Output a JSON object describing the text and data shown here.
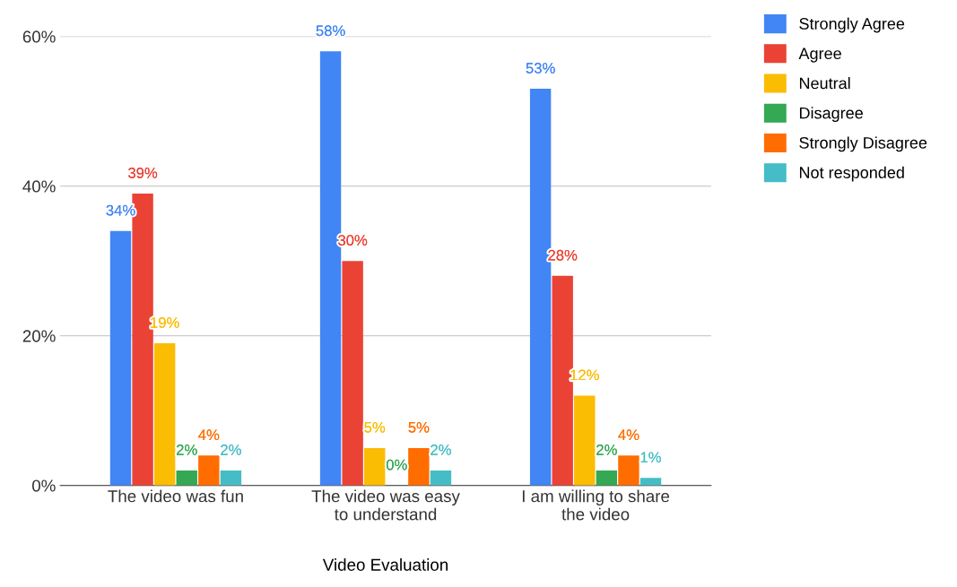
{
  "chart_data": {
    "type": "bar",
    "xlabel": "Video Evaluation",
    "categories": [
      "The video was fun",
      "The video was easy\nto understand",
      "I am willing to share\nthe video"
    ],
    "series": [
      {
        "name": "Strongly Agree",
        "color": "#4285f4",
        "values": [
          34,
          58,
          53
        ],
        "value_labels": [
          "34%",
          "58%",
          "53%"
        ]
      },
      {
        "name": "Agree",
        "color": "#ea4335",
        "values": [
          39,
          30,
          28
        ],
        "value_labels": [
          "39%",
          "30%",
          "28%"
        ]
      },
      {
        "name": "Neutral",
        "color": "#fbbc04",
        "values": [
          19,
          5,
          12
        ],
        "value_labels": [
          "19%",
          "5%",
          "12%"
        ]
      },
      {
        "name": "Disagree",
        "color": "#34a853",
        "values": [
          2,
          0,
          2
        ],
        "value_labels": [
          "2%",
          "0%",
          "2%"
        ]
      },
      {
        "name": "Strongly Disagree",
        "color": "#ff6d01",
        "values": [
          4,
          5,
          4
        ],
        "value_labels": [
          "4%",
          "5%",
          "4%"
        ]
      },
      {
        "name": "Not responded",
        "color": "#46bdc6",
        "values": [
          2,
          2,
          1
        ],
        "value_labels": [
          "2%",
          "2%",
          "1%"
        ]
      }
    ],
    "ylim": [
      0,
      60
    ],
    "yticks": [
      {
        "value": 0,
        "label": "0%"
      },
      {
        "value": 20,
        "label": "20%"
      },
      {
        "value": 40,
        "label": "40%"
      },
      {
        "value": 60,
        "label": "60%"
      }
    ],
    "grid": "y",
    "legend": "top right"
  }
}
